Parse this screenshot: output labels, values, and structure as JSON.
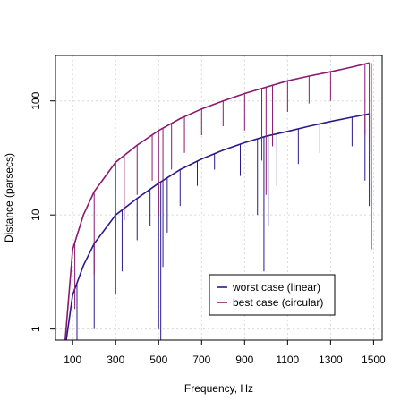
{
  "chart_data": {
    "type": "line",
    "title": "",
    "xlabel": "Frequency, Hz",
    "ylabel": "Distance (parsecs)",
    "xlim": [
      20,
      1540
    ],
    "ylim": [
      0.8,
      250
    ],
    "y_scale": "log",
    "grid": true,
    "legend_placement": "bottom-right",
    "x_ticks": [
      100,
      300,
      500,
      700,
      900,
      1100,
      1300,
      1500
    ],
    "x_tick_labels": [
      "100",
      "300",
      "500",
      "700",
      "900",
      "1100",
      "1300",
      "1500"
    ],
    "y_ticks": [
      1,
      10,
      100
    ],
    "y_tick_labels": [
      "1",
      "10",
      "100"
    ],
    "series": [
      {
        "name": "worst case (linear)",
        "color": "#2a1a8c",
        "envelope": {
          "x": [
            70,
            100,
            150,
            200,
            300,
            400,
            500,
            600,
            700,
            800,
            900,
            1000,
            1100,
            1200,
            1300,
            1400,
            1480
          ],
          "y": [
            0.8,
            2.0,
            3.6,
            5.6,
            10,
            14,
            19,
            25,
            31,
            37,
            43,
            49,
            54,
            60,
            66,
            72,
            77
          ]
        },
        "dips": [
          {
            "x": 120,
            "y": 0.8
          },
          {
            "x": 200,
            "y": 1.0
          },
          {
            "x": 300,
            "y": 2.0
          },
          {
            "x": 330,
            "y": 3.2
          },
          {
            "x": 400,
            "y": 6.0
          },
          {
            "x": 460,
            "y": 8.0
          },
          {
            "x": 500,
            "y": 1.0
          },
          {
            "x": 510,
            "y": 0.8
          },
          {
            "x": 520,
            "y": 3.5
          },
          {
            "x": 540,
            "y": 7.0
          },
          {
            "x": 600,
            "y": 12
          },
          {
            "x": 680,
            "y": 18
          },
          {
            "x": 760,
            "y": 25
          },
          {
            "x": 880,
            "y": 22
          },
          {
            "x": 960,
            "y": 10
          },
          {
            "x": 990,
            "y": 3.2
          },
          {
            "x": 1010,
            "y": 8.0
          },
          {
            "x": 1050,
            "y": 18
          },
          {
            "x": 1150,
            "y": 28
          },
          {
            "x": 1250,
            "y": 35
          },
          {
            "x": 1400,
            "y": 40
          },
          {
            "x": 1460,
            "y": 20
          },
          {
            "x": 1480,
            "y": 12
          },
          {
            "x": 1490,
            "y": 5.0
          }
        ]
      },
      {
        "name": "best case (circular)",
        "color": "#8a1a70",
        "envelope": {
          "x": [
            65,
            100,
            150,
            200,
            300,
            400,
            500,
            600,
            700,
            800,
            900,
            1000,
            1100,
            1200,
            1300,
            1400,
            1480
          ],
          "y": [
            0.8,
            5.0,
            10,
            16,
            29,
            41,
            55,
            70,
            85,
            100,
            116,
            132,
            150,
            165,
            180,
            198,
            215
          ]
        },
        "dips": [
          {
            "x": 110,
            "y": 1.5
          },
          {
            "x": 200,
            "y": 3.0
          },
          {
            "x": 300,
            "y": 6.0
          },
          {
            "x": 340,
            "y": 9.0
          },
          {
            "x": 400,
            "y": 15
          },
          {
            "x": 470,
            "y": 20
          },
          {
            "x": 500,
            "y": 10
          },
          {
            "x": 520,
            "y": 18
          },
          {
            "x": 560,
            "y": 25
          },
          {
            "x": 620,
            "y": 35
          },
          {
            "x": 700,
            "y": 50
          },
          {
            "x": 800,
            "y": 60
          },
          {
            "x": 900,
            "y": 55
          },
          {
            "x": 980,
            "y": 30
          },
          {
            "x": 1000,
            "y": 15
          },
          {
            "x": 1030,
            "y": 40
          },
          {
            "x": 1100,
            "y": 80
          },
          {
            "x": 1200,
            "y": 95
          },
          {
            "x": 1300,
            "y": 100
          },
          {
            "x": 1460,
            "y": 50
          },
          {
            "x": 1480,
            "y": 35
          },
          {
            "x": 1490,
            "y": 20
          }
        ]
      }
    ]
  }
}
